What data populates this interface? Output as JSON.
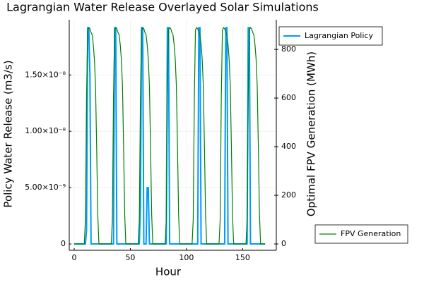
{
  "chart_data": {
    "type": "line",
    "title": "Lagrangian Water Release Overlayed Solar Simulations",
    "x_label": "Hour",
    "y_label": "Policy Water Release (m3/s)",
    "y2_label": "Optimal FPV Generation (MWh)",
    "grid": true,
    "x": [
      0,
      1,
      2,
      3,
      4,
      5,
      6,
      7,
      8,
      9,
      10,
      11,
      12,
      13,
      14,
      15,
      16,
      17,
      18,
      19,
      20,
      21,
      22,
      23,
      24,
      25,
      26,
      27,
      28,
      29,
      30,
      31,
      32,
      33,
      34,
      35,
      36,
      37,
      38,
      39,
      40,
      41,
      42,
      43,
      44,
      45,
      46,
      47,
      48,
      49,
      50,
      51,
      52,
      53,
      54,
      55,
      56,
      57,
      58,
      59,
      60,
      61,
      62,
      63,
      64,
      65,
      66,
      67,
      68,
      69,
      70,
      71,
      72,
      73,
      74,
      75,
      76,
      77,
      78,
      79,
      80,
      81,
      82,
      83,
      84,
      85,
      86,
      87,
      88,
      89,
      90,
      91,
      92,
      93,
      94,
      95,
      96,
      97,
      98,
      99,
      100,
      101,
      102,
      103,
      104,
      105,
      106,
      107,
      108,
      109,
      110,
      111,
      112,
      113,
      114,
      115,
      116,
      117,
      118,
      119,
      120,
      121,
      122,
      123,
      124,
      125,
      126,
      127,
      128,
      129,
      130,
      131,
      132,
      133,
      134,
      135,
      136,
      137,
      138,
      139,
      140,
      141,
      142,
      143,
      144,
      145,
      146,
      147,
      148,
      149,
      150,
      151,
      152,
      153,
      154,
      155,
      156,
      157,
      158,
      159,
      160,
      161,
      162,
      163,
      164,
      165,
      166,
      167,
      168,
      169,
      170
    ],
    "series": [
      {
        "name": "Lagrangian Policy",
        "color": "#009afa",
        "axis": "y",
        "values": [
          0,
          0,
          0,
          0,
          0,
          0,
          0,
          0,
          0,
          0,
          0,
          1.2e-09,
          1.92e-08,
          1.92e-08,
          1.5e-08,
          0,
          0,
          0,
          0,
          0,
          0,
          0,
          0,
          0,
          0,
          0,
          0,
          0,
          0,
          0,
          0,
          0,
          0,
          0,
          0,
          0,
          1.92e-08,
          1.92e-08,
          0,
          0,
          0,
          0,
          0,
          0,
          0,
          0,
          0,
          0,
          0,
          0,
          0,
          0,
          0,
          0,
          0,
          0,
          0,
          0,
          0,
          3.3e-09,
          1.92e-08,
          1.92e-08,
          0,
          0,
          0,
          5e-09,
          5e-09,
          0,
          0,
          0,
          0,
          0,
          0,
          0,
          0,
          0,
          0,
          0,
          0,
          0,
          0,
          0,
          0,
          1.92e-08,
          1.92e-08,
          0,
          0,
          0,
          0,
          0,
          0,
          0,
          0,
          0,
          0,
          0,
          0,
          0,
          0,
          0,
          0,
          0,
          0,
          0,
          0,
          0,
          0,
          0,
          0,
          0,
          0,
          1.92e-08,
          1.92e-08,
          0,
          0,
          0,
          0,
          0,
          0,
          0,
          0,
          0,
          0,
          0,
          0,
          0,
          0,
          0,
          0,
          0,
          0,
          0,
          0,
          0,
          0,
          1.92e-08,
          1.92e-08,
          0,
          0,
          0,
          0,
          0,
          0,
          0,
          0,
          0,
          0,
          0,
          0,
          0,
          0,
          0,
          0,
          0,
          0,
          1.92e-08,
          1.92e-08,
          0,
          0,
          0,
          0,
          0,
          0,
          0,
          0,
          0,
          0,
          0,
          0,
          0,
          0
        ]
      },
      {
        "name": "FPV Generation",
        "color": "#008000",
        "axis": "y2",
        "values": [
          0,
          0,
          0,
          0,
          0,
          0,
          0,
          0,
          0,
          0,
          100,
          600,
          880,
          890,
          885,
          870,
          860,
          820,
          760,
          650,
          400,
          120,
          0,
          0,
          0,
          0,
          0,
          0,
          0,
          0,
          0,
          0,
          0,
          0,
          100,
          600,
          880,
          890,
          885,
          870,
          860,
          820,
          760,
          650,
          400,
          120,
          0,
          0,
          0,
          0,
          0,
          0,
          0,
          0,
          0,
          0,
          0,
          0,
          100,
          600,
          880,
          890,
          885,
          870,
          860,
          820,
          760,
          650,
          400,
          120,
          0,
          0,
          0,
          0,
          0,
          0,
          0,
          0,
          0,
          0,
          0,
          0,
          100,
          600,
          880,
          890,
          885,
          870,
          860,
          820,
          760,
          650,
          400,
          120,
          0,
          0,
          0,
          0,
          0,
          0,
          0,
          0,
          0,
          0,
          0,
          0,
          100,
          600,
          880,
          890,
          885,
          870,
          860,
          820,
          760,
          650,
          400,
          120,
          0,
          0,
          0,
          0,
          0,
          0,
          0,
          0,
          0,
          0,
          0,
          0,
          100,
          600,
          880,
          890,
          885,
          870,
          860,
          820,
          760,
          650,
          400,
          120,
          0,
          0,
          0,
          0,
          0,
          0,
          0,
          0,
          0,
          0,
          0,
          0,
          100,
          600,
          880,
          890,
          885,
          870,
          860,
          820,
          760,
          650,
          400,
          120,
          0,
          0,
          0,
          0,
          0
        ]
      }
    ],
    "xlim": [
      -4.4,
      180
    ],
    "xticks": [
      0,
      50,
      100,
      150
    ],
    "ylim": [
      -5.6e-10,
      1.99e-08
    ],
    "yticks": [
      0,
      {
        "value": 5e-09,
        "label": "5.00×10⁻⁹"
      },
      {
        "value": 1e-08,
        "label": "1.00×10⁻⁸"
      },
      {
        "value": 1.5e-08,
        "label": "1.50×10⁻⁸"
      }
    ],
    "y2lim": [
      -26,
      922
    ],
    "y2ticks": [
      0,
      200,
      400,
      600,
      800
    ]
  }
}
